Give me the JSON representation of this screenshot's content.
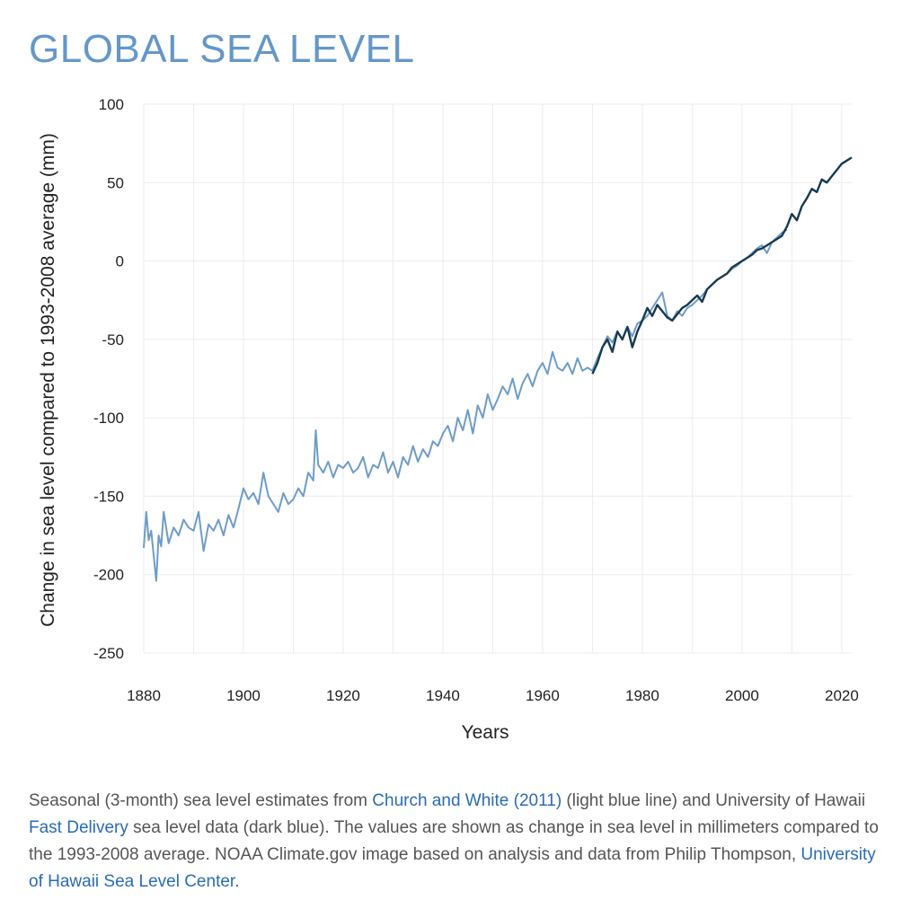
{
  "page": {
    "title": "GLOBAL SEA LEVEL"
  },
  "caption": {
    "part1": "Seasonal (3-month) sea level estimates from ",
    "link1": "Church and White (2011)",
    "part2": " (light blue line) and University of Hawaii ",
    "link2": "Fast Delivery",
    "part3": " sea level data (dark blue). The values are shown as change in sea level in millimeters compared to the 1993-2008 average. NOAA Climate.gov image based on analysis and data from Philip Thompson, ",
    "link3": "University of Hawaii Sea Level Center",
    "part4": "."
  },
  "colors": {
    "title": "#6497c8",
    "light_series": "#6e9cc8",
    "dark_series": "#173a4f",
    "grid": "#ececec",
    "link": "#2a6bb3",
    "caption_text": "#555555"
  },
  "chart_data": {
    "type": "line",
    "xlabel": "Years",
    "ylabel": "Change in sea level compared to 1993-2008 average (mm)",
    "xlim": [
      1880,
      2022
    ],
    "ylim": [
      -250,
      100
    ],
    "x_ticks": [
      1880,
      1900,
      1920,
      1940,
      1960,
      1980,
      2000,
      2020
    ],
    "y_ticks": [
      100,
      50,
      0,
      -50,
      -100,
      -150,
      -200,
      -250
    ],
    "grid": true,
    "legend": "none",
    "series": [
      {
        "color": "light blue",
        "x": [
          1880,
          1880.5,
          1881,
          1881.5,
          1882,
          1882.5,
          1883,
          1883.5,
          1884,
          1885,
          1886,
          1887,
          1888,
          1889,
          1890,
          1891,
          1892,
          1893,
          1894,
          1895,
          1896,
          1897,
          1898,
          1899,
          1900,
          1901,
          1902,
          1903,
          1904,
          1905,
          1906,
          1907,
          1908,
          1909,
          1910,
          1911,
          1912,
          1913,
          1914,
          1914.5,
          1915,
          1916,
          1917,
          1918,
          1919,
          1920,
          1921,
          1922,
          1923,
          1924,
          1925,
          1926,
          1927,
          1928,
          1929,
          1930,
          1931,
          1932,
          1933,
          1934,
          1935,
          1936,
          1937,
          1938,
          1939,
          1940,
          1941,
          1942,
          1943,
          1944,
          1945,
          1946,
          1947,
          1948,
          1949,
          1950,
          1951,
          1952,
          1953,
          1954,
          1955,
          1956,
          1957,
          1958,
          1959,
          1960,
          1961,
          1962,
          1963,
          1964,
          1965,
          1966,
          1967,
          1968,
          1969,
          1970,
          1971,
          1972,
          1973,
          1974,
          1975,
          1976,
          1977,
          1978,
          1979,
          1980,
          1981,
          1982,
          1983,
          1984,
          1985,
          1986,
          1987,
          1988,
          1989,
          1990,
          1991,
          1992,
          1993,
          1994,
          1995,
          1996,
          1997,
          1998,
          1999,
          2000,
          2001,
          2002,
          2003,
          2004,
          2005,
          2006,
          2007,
          2008,
          2009
        ],
        "y": [
          -183,
          -160,
          -178,
          -172,
          -188,
          -204,
          -175,
          -182,
          -160,
          -180,
          -170,
          -175,
          -165,
          -170,
          -172,
          -160,
          -185,
          -168,
          -172,
          -165,
          -175,
          -162,
          -170,
          -158,
          -145,
          -152,
          -148,
          -155,
          -135,
          -150,
          -155,
          -160,
          -148,
          -155,
          -152,
          -145,
          -150,
          -135,
          -140,
          -108,
          -130,
          -135,
          -128,
          -138,
          -130,
          -132,
          -128,
          -135,
          -132,
          -125,
          -138,
          -130,
          -132,
          -122,
          -135,
          -128,
          -138,
          -125,
          -130,
          -118,
          -128,
          -120,
          -125,
          -115,
          -118,
          -110,
          -105,
          -115,
          -100,
          -108,
          -95,
          -110,
          -92,
          -100,
          -85,
          -95,
          -88,
          -80,
          -85,
          -75,
          -88,
          -78,
          -72,
          -80,
          -70,
          -65,
          -72,
          -58,
          -68,
          -70,
          -65,
          -72,
          -62,
          -70,
          -68,
          -70,
          -62,
          -55,
          -48,
          -52,
          -45,
          -50,
          -42,
          -48,
          -40,
          -38,
          -35,
          -30,
          -25,
          -20,
          -35,
          -38,
          -32,
          -35,
          -30,
          -28,
          -25,
          -22,
          -18,
          -15,
          -12,
          -10,
          -8,
          -5,
          -3,
          0,
          2,
          5,
          8,
          10,
          5,
          12,
          15,
          18,
          20
        ]
      },
      {
        "color": "dark blue",
        "x": [
          1970,
          1971,
          1972,
          1973,
          1974,
          1975,
          1976,
          1977,
          1978,
          1979,
          1980,
          1981,
          1982,
          1983,
          1984,
          1985,
          1986,
          1987,
          1988,
          1989,
          1990,
          1991,
          1992,
          1993,
          1994,
          1995,
          1996,
          1997,
          1998,
          1999,
          2000,
          2001,
          2002,
          2003,
          2004,
          2005,
          2006,
          2007,
          2008,
          2009,
          2010,
          2011,
          2012,
          2013,
          2014,
          2015,
          2016,
          2017,
          2018,
          2019,
          2020,
          2021,
          2022
        ],
        "y": [
          -72,
          -65,
          -55,
          -50,
          -58,
          -45,
          -50,
          -42,
          -55,
          -45,
          -38,
          -30,
          -35,
          -28,
          -32,
          -36,
          -38,
          -34,
          -30,
          -28,
          -25,
          -22,
          -26,
          -18,
          -15,
          -12,
          -10,
          -8,
          -4,
          -2,
          0,
          2,
          4,
          7,
          8,
          10,
          12,
          14,
          16,
          22,
          30,
          26,
          35,
          40,
          46,
          44,
          52,
          50,
          54,
          58,
          62,
          64,
          66
        ]
      }
    ]
  }
}
